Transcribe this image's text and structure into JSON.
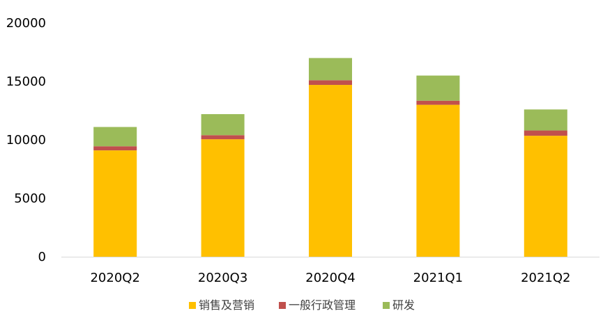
{
  "chart_data": {
    "type": "bar",
    "stacked": true,
    "categories": [
      "2020Q2",
      "2020Q3",
      "2020Q4",
      "2021Q1",
      "2021Q2"
    ],
    "series": [
      {
        "name": "销售及营销",
        "color": "#FFC000",
        "values": [
          9100,
          10050,
          14700,
          13000,
          10350
        ]
      },
      {
        "name": "一般行政管理",
        "color": "#C0504D",
        "values": [
          350,
          350,
          400,
          350,
          450
        ]
      },
      {
        "name": "研发",
        "color": "#9BBB59",
        "values": [
          1650,
          1800,
          1900,
          2150,
          1800
        ]
      }
    ],
    "ylim": [
      0,
      20000
    ],
    "yticks": [
      0,
      5000,
      10000,
      15000,
      20000
    ],
    "ytick_labels": [
      "0",
      "5000",
      "10000",
      "15000",
      "20000"
    ],
    "grid": false,
    "legend_position": "bottom"
  }
}
